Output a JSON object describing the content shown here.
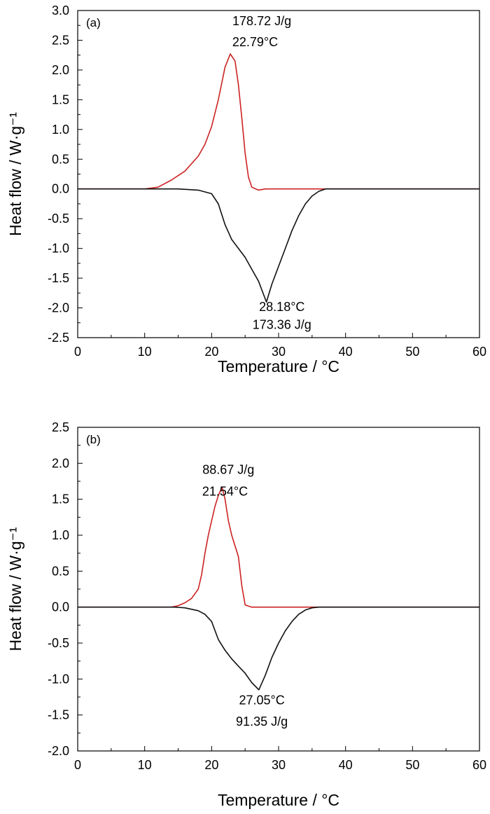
{
  "chart_data": [
    {
      "type": "line",
      "panel_label": "(a)",
      "xlabel": "Temperature / °C",
      "ylabel": "Heat flow / W·g⁻¹",
      "xlim": [
        0,
        60
      ],
      "ylim": [
        -2.5,
        3.0
      ],
      "x_ticks": [
        0,
        10,
        20,
        30,
        40,
        50,
        60
      ],
      "y_ticks": [
        -2.5,
        -2.0,
        -1.5,
        -1.0,
        -0.5,
        0.0,
        0.5,
        1.0,
        1.5,
        2.0,
        2.5,
        3.0
      ],
      "y_tick_labels": [
        "-2.5",
        "-2.0",
        "-1.5",
        "-1.0",
        "-0.5",
        "0.0",
        "0.5",
        "1.0",
        "1.5",
        "2.0",
        "2.5",
        "3.0"
      ],
      "grid": false,
      "series": [
        {
          "color": "#cc2222",
          "x": [
            0,
            10,
            12,
            14,
            16,
            18,
            19,
            20,
            21,
            22,
            22.79,
            23.5,
            24,
            24.5,
            25,
            25.5,
            26,
            27,
            28,
            30,
            35,
            40,
            45,
            50,
            55,
            60
          ],
          "y": [
            0.0,
            0.0,
            0.03,
            0.15,
            0.3,
            0.55,
            0.75,
            1.05,
            1.5,
            2.05,
            2.27,
            2.15,
            1.75,
            1.2,
            0.6,
            0.2,
            0.03,
            -0.02,
            0.0,
            0.0,
            0.0,
            0.0,
            0.0,
            0.0,
            0.0,
            0.0
          ]
        },
        {
          "color": "#111111",
          "x": [
            0,
            10,
            15,
            18,
            20,
            21,
            22,
            23,
            24,
            25,
            26,
            27,
            28.18,
            29,
            30,
            31,
            32,
            33,
            34,
            35,
            36,
            37,
            40,
            45,
            50,
            60
          ],
          "y": [
            0.0,
            0.0,
            0.0,
            -0.02,
            -0.08,
            -0.25,
            -0.6,
            -0.85,
            -1.0,
            -1.15,
            -1.35,
            -1.55,
            -1.9,
            -1.6,
            -1.3,
            -1.0,
            -0.7,
            -0.45,
            -0.25,
            -0.12,
            -0.04,
            0.0,
            0.0,
            0.0,
            0.0,
            0.0
          ]
        }
      ],
      "annotations": [
        {
          "text": "178.72 J/g",
          "x": 27.5,
          "y": 2.75
        },
        {
          "text": "22.79°C",
          "x": 26.5,
          "y": 2.4
        },
        {
          "text": "28.18°C",
          "x": 30.5,
          "y": -2.05
        },
        {
          "text": "173.36 J/g",
          "x": 30.5,
          "y": -2.35
        }
      ]
    },
    {
      "type": "line",
      "panel_label": "(b)",
      "xlabel": "Temperature / °C",
      "ylabel": "Heat flow / W·g⁻¹",
      "xlim": [
        0,
        60
      ],
      "ylim": [
        -2.0,
        2.5
      ],
      "x_ticks": [
        0,
        10,
        20,
        30,
        40,
        50,
        60
      ],
      "y_ticks": [
        -2.0,
        -1.5,
        -1.0,
        -0.5,
        0.0,
        0.5,
        1.0,
        1.5,
        2.0,
        2.5
      ],
      "y_tick_labels": [
        "-2.0",
        "-1.5",
        "-1.0",
        "-0.5",
        "0.0",
        "0.5",
        "1.0",
        "1.5",
        "2.0",
        "2.5"
      ],
      "grid": false,
      "series": [
        {
          "color": "#cc2222",
          "x": [
            0,
            10,
            14,
            15,
            16,
            17,
            18,
            18.5,
            19,
            19.5,
            20,
            20.5,
            21,
            21.54,
            22,
            22.5,
            23,
            23.5,
            24,
            24.5,
            25,
            26,
            30,
            40,
            50,
            60
          ],
          "y": [
            0.0,
            0.0,
            0.0,
            0.02,
            0.06,
            0.12,
            0.25,
            0.45,
            0.75,
            1.0,
            1.2,
            1.4,
            1.55,
            1.67,
            1.5,
            1.2,
            1.0,
            0.85,
            0.7,
            0.3,
            0.03,
            0.0,
            0.0,
            0.0,
            0.0,
            0.0
          ]
        },
        {
          "color": "#111111",
          "x": [
            0,
            10,
            14.5,
            16,
            18,
            19,
            20,
            21,
            22,
            23,
            24,
            25,
            26,
            27.05,
            28,
            29,
            30,
            31,
            32,
            33,
            34,
            35,
            36,
            40,
            50,
            60
          ],
          "y": [
            0.0,
            0.0,
            0.0,
            -0.01,
            -0.05,
            -0.1,
            -0.2,
            -0.45,
            -0.6,
            -0.72,
            -0.82,
            -0.92,
            -1.05,
            -1.15,
            -0.95,
            -0.7,
            -0.5,
            -0.33,
            -0.2,
            -0.1,
            -0.04,
            -0.01,
            0.0,
            0.0,
            0.0,
            0.0
          ]
        }
      ],
      "annotations": [
        {
          "text": "88.67 J/g",
          "x": 22.5,
          "y": 1.85
        },
        {
          "text": "21.54°C",
          "x": 22.0,
          "y": 1.55
        },
        {
          "text": "27.05°C",
          "x": 27.5,
          "y": -1.35
        },
        {
          "text": "91.35 J/g",
          "x": 27.5,
          "y": -1.65
        }
      ]
    }
  ]
}
